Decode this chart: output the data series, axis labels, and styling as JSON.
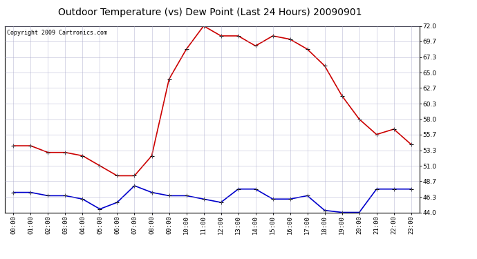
{
  "title": "Outdoor Temperature (vs) Dew Point (Last 24 Hours) 20090901",
  "copyright": "Copyright 2009 Cartronics.com",
  "hours": [
    "00:00",
    "01:00",
    "02:00",
    "03:00",
    "04:00",
    "05:00",
    "06:00",
    "07:00",
    "08:00",
    "09:00",
    "10:00",
    "11:00",
    "12:00",
    "13:00",
    "14:00",
    "15:00",
    "16:00",
    "17:00",
    "18:00",
    "19:00",
    "20:00",
    "21:00",
    "22:00",
    "23:00"
  ],
  "temp": [
    54.0,
    54.0,
    53.0,
    53.0,
    52.5,
    51.0,
    49.5,
    49.5,
    52.5,
    64.0,
    68.5,
    72.0,
    70.5,
    70.5,
    69.0,
    70.5,
    70.0,
    68.5,
    66.0,
    61.5,
    58.0,
    55.7,
    56.5,
    54.2
  ],
  "dewpoint": [
    47.0,
    47.0,
    46.5,
    46.5,
    46.0,
    44.5,
    45.5,
    48.0,
    47.0,
    46.5,
    46.5,
    46.0,
    45.5,
    47.5,
    47.5,
    46.0,
    46.0,
    46.5,
    44.3,
    44.0,
    44.0,
    47.5,
    47.5,
    47.5
  ],
  "temp_color": "#cc0000",
  "dew_color": "#0000cc",
  "bg_color": "#ffffff",
  "plot_bg": "#ffffff",
  "grid_color": "#aaaacc",
  "ylim": [
    44.0,
    72.0
  ],
  "yticks": [
    44.0,
    46.3,
    48.7,
    51.0,
    53.3,
    55.7,
    58.0,
    60.3,
    62.7,
    65.0,
    67.3,
    69.7,
    72.0
  ],
  "ytick_labels": [
    "44.0",
    "46.3",
    "48.7",
    "51.0",
    "53.3",
    "55.7",
    "58.0",
    "60.3",
    "62.7",
    "65.0",
    "67.3",
    "69.7",
    "72.0"
  ],
  "marker": "+",
  "markersize": 5,
  "linewidth": 1.2,
  "title_fontsize": 10,
  "tick_fontsize": 6.5,
  "copyright_fontsize": 6
}
